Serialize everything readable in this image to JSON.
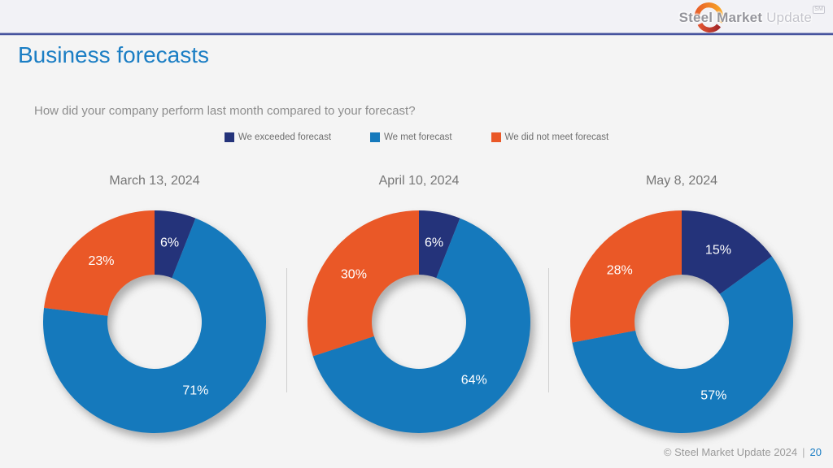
{
  "header": {
    "logo": {
      "name_bold": "Steel Market",
      "name_light": "Update",
      "mark": "SM"
    }
  },
  "page": {
    "title": "Business forecasts",
    "question": "How did your company perform last month compared to your forecast?"
  },
  "legend": [
    {
      "label": "We exceeded forecast",
      "color": "#24337a"
    },
    {
      "label": "We met forecast",
      "color": "#1579bc"
    },
    {
      "label": "We did not meet forecast",
      "color": "#ea5827"
    }
  ],
  "chart_data": {
    "type": "pie",
    "subtype": "donut",
    "title": "Business forecasts",
    "question": "How did your company perform last month compared to your forecast?",
    "categories": [
      "We exceeded forecast",
      "We met forecast",
      "We did not meet forecast"
    ],
    "colors": [
      "#24337a",
      "#1579bc",
      "#ea5827"
    ],
    "start_angle_deg": 0,
    "direction": "clockwise",
    "legend_position": "top",
    "charts": [
      {
        "title": "March 13, 2024",
        "values": [
          6,
          71,
          23
        ],
        "labels": [
          "6%",
          "71%",
          "23%"
        ]
      },
      {
        "title": "April 10, 2024",
        "values": [
          6,
          64,
          30
        ],
        "labels": [
          "6%",
          "64%",
          "30%"
        ]
      },
      {
        "title": "May 8, 2024",
        "values": [
          15,
          57,
          28
        ],
        "labels": [
          "15%",
          "57%",
          "28%"
        ]
      }
    ]
  },
  "footer": {
    "copyright": "© Steel Market Update 2024",
    "separator": "|",
    "page_number": "20"
  }
}
